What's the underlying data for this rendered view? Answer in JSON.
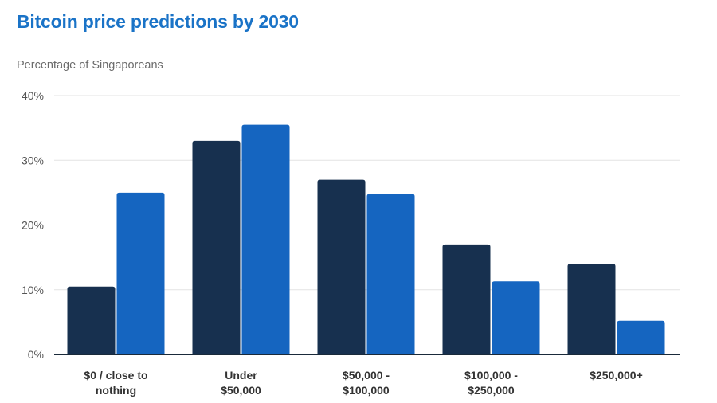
{
  "chart_data": {
    "type": "bar",
    "title": "Bitcoin price predictions by 2030",
    "subtitle": "Percentage of Singaporeans",
    "categories": [
      [
        "$0 / close to",
        "nothing"
      ],
      [
        "Under",
        "$50,000"
      ],
      [
        "$50,000 -",
        "$100,000"
      ],
      [
        "$100,000 -",
        "$250,000"
      ],
      [
        "$250,000+"
      ]
    ],
    "series": [
      {
        "color": "#17304f",
        "values": [
          10.5,
          33,
          27,
          17,
          14
        ]
      },
      {
        "color": "#1565c0",
        "values": [
          25,
          35.5,
          24.8,
          11.3,
          5.2
        ]
      }
    ],
    "yticks": [
      "0%",
      "10%",
      "20%",
      "30%",
      "40%"
    ],
    "ylim": [
      0,
      40
    ],
    "grid": true,
    "legend": "none"
  }
}
